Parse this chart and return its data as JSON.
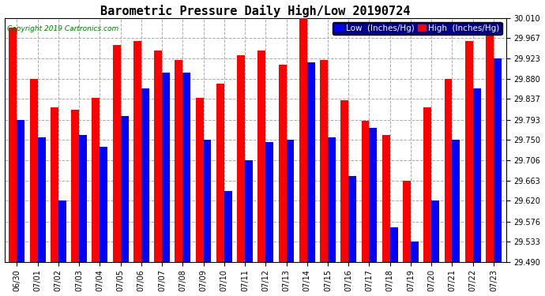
{
  "title": "Barometric Pressure Daily High/Low 20190724",
  "copyright": "Copyright 2019 Cartronics.com",
  "legend_low": "Low  (Inches/Hg)",
  "legend_high": "High  (Inches/Hg)",
  "dates": [
    "06/30",
    "07/01",
    "07/02",
    "07/03",
    "07/04",
    "07/05",
    "07/06",
    "07/07",
    "07/08",
    "07/09",
    "07/10",
    "07/11",
    "07/12",
    "07/13",
    "07/14",
    "07/15",
    "07/16",
    "07/17",
    "07/18",
    "07/19",
    "07/20",
    "07/21",
    "07/22",
    "07/23"
  ],
  "high": [
    29.99,
    29.88,
    29.82,
    29.815,
    29.84,
    29.953,
    29.96,
    29.94,
    29.92,
    29.84,
    29.87,
    29.93,
    29.94,
    29.91,
    30.01,
    29.92,
    29.835,
    29.79,
    29.76,
    29.663,
    29.82,
    29.88,
    29.96,
    29.99
  ],
  "low": [
    29.793,
    29.755,
    29.62,
    29.76,
    29.735,
    29.8,
    29.86,
    29.893,
    29.893,
    29.75,
    29.64,
    29.706,
    29.745,
    29.75,
    29.915,
    29.755,
    29.672,
    29.775,
    29.563,
    29.533,
    29.62,
    29.75,
    29.86,
    29.923
  ],
  "bar_width": 0.38,
  "ylim_min": 29.49,
  "ylim_max": 30.01,
  "yticks": [
    29.49,
    29.533,
    29.576,
    29.62,
    29.663,
    29.706,
    29.75,
    29.793,
    29.837,
    29.88,
    29.923,
    29.967,
    30.01
  ],
  "color_high": "#ff0000",
  "color_low": "#0000ff",
  "bg_color": "#ffffff",
  "grid_color": "#aaaaaa",
  "title_fontsize": 11,
  "tick_fontsize": 7,
  "legend_fontsize": 7.5,
  "fig_width": 6.9,
  "fig_height": 3.75,
  "dpi": 100
}
